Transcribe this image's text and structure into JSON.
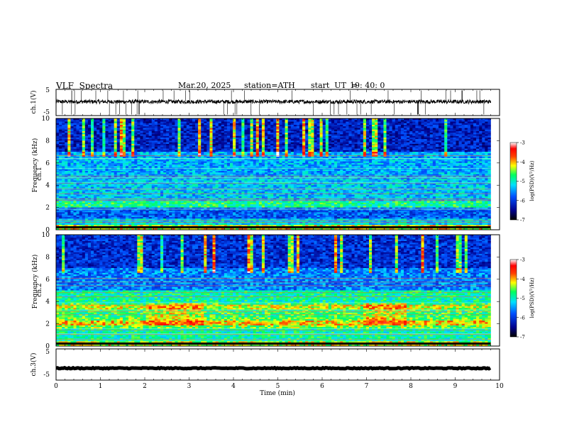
{
  "header": {
    "title": "VLF  Spectra",
    "date": "Mar.20, 2025",
    "station": "station=ATH",
    "start_ut_label": "start  UT  =",
    "start_ut_value": "19: 40: 0"
  },
  "chart_data": [
    {
      "type": "line",
      "name": "ch1-waveform",
      "ylabel": "ch.1(V)",
      "ylim": [
        -5,
        5
      ],
      "y_ticks": [
        "5",
        "-5"
      ],
      "x_range": [
        0,
        10
      ],
      "trace_range_min": [
        0,
        9.8
      ],
      "level": 0.3,
      "noise_amplitude": 0.7
    },
    {
      "type": "heatmap",
      "name": "ch1-spectrogram",
      "ylabel": "ch.1\nFrequency (kHz)",
      "ylim": [
        0,
        10
      ],
      "y_ticks": [
        "0",
        "2",
        "4",
        "6",
        "8",
        "10"
      ],
      "x_range": [
        0,
        10
      ],
      "data_extent_min": 9.8,
      "colorbar": {
        "label": "log(PSD)(V²/Hz)",
        "range": [
          -7,
          -3
        ],
        "ticks": [
          "-3",
          "-4",
          "-5",
          "-6",
          "-7"
        ]
      }
    },
    {
      "type": "heatmap",
      "name": "ch2-spectrogram",
      "ylabel": "ch.2\nFrequency (kHz)",
      "ylim": [
        0,
        10
      ],
      "y_ticks": [
        "0",
        "2",
        "4",
        "6",
        "8",
        "10"
      ],
      "x_range": [
        0,
        10
      ],
      "data_extent_min": 9.8,
      "colorbar": {
        "label": "log(PSD)(V²/Hz)",
        "range": [
          -7,
          -3
        ],
        "ticks": [
          "-3",
          "-4",
          "-5",
          "-6",
          "-7"
        ]
      }
    },
    {
      "type": "line",
      "name": "ch3-waveform",
      "ylabel": "ch.3(V)",
      "ylim": [
        -5,
        5
      ],
      "y_ticks": [
        "5",
        "-5"
      ],
      "x_range": [
        0,
        10
      ],
      "trace_range_min": [
        0,
        9.8
      ],
      "level": -1.2,
      "noise_amplitude": 0.15
    }
  ],
  "x_axis": {
    "label": "Time  (min)",
    "ticks": [
      "0",
      "1",
      "2",
      "3",
      "4",
      "5",
      "6",
      "7",
      "8",
      "9",
      "10"
    ]
  }
}
